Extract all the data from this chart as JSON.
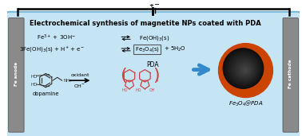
{
  "title": "Electrochemical synthesis of magnetite NPs coated with PDA",
  "bg_color": "#c5e5f5",
  "border_color": "#7ab8d8",
  "electrode_color": "#8a8a8a",
  "arrow_blue": "#3388cc",
  "orange_color": "#cc4400",
  "dark_core": "#1a1a1a",
  "pda_color": "#cc4444",
  "black": "#000000",
  "white": "#ffffff",
  "anode_label": "Fe anode",
  "cathode_label": "Fe cathode",
  "eq1_left": "Fe$^{3+}$ + 3OH$^{-}$",
  "eq1_right": "Fe(OH)$_3$(s)",
  "eq2_left": "3Fe(OH)$_3$(s) + H$^{+}$ + e$^{-}$",
  "eq2_right_box": "Fe$_3$O$_4$(s)",
  "eq2_right_tail": "+ 5H$_2$O",
  "dopamine_label": "dopamine",
  "oxidant_label": "oxidant",
  "oh_label": "OH$^{-}$",
  "pda_label": "PDA",
  "product_label": "Fe$_3$O$_4$@PDA"
}
